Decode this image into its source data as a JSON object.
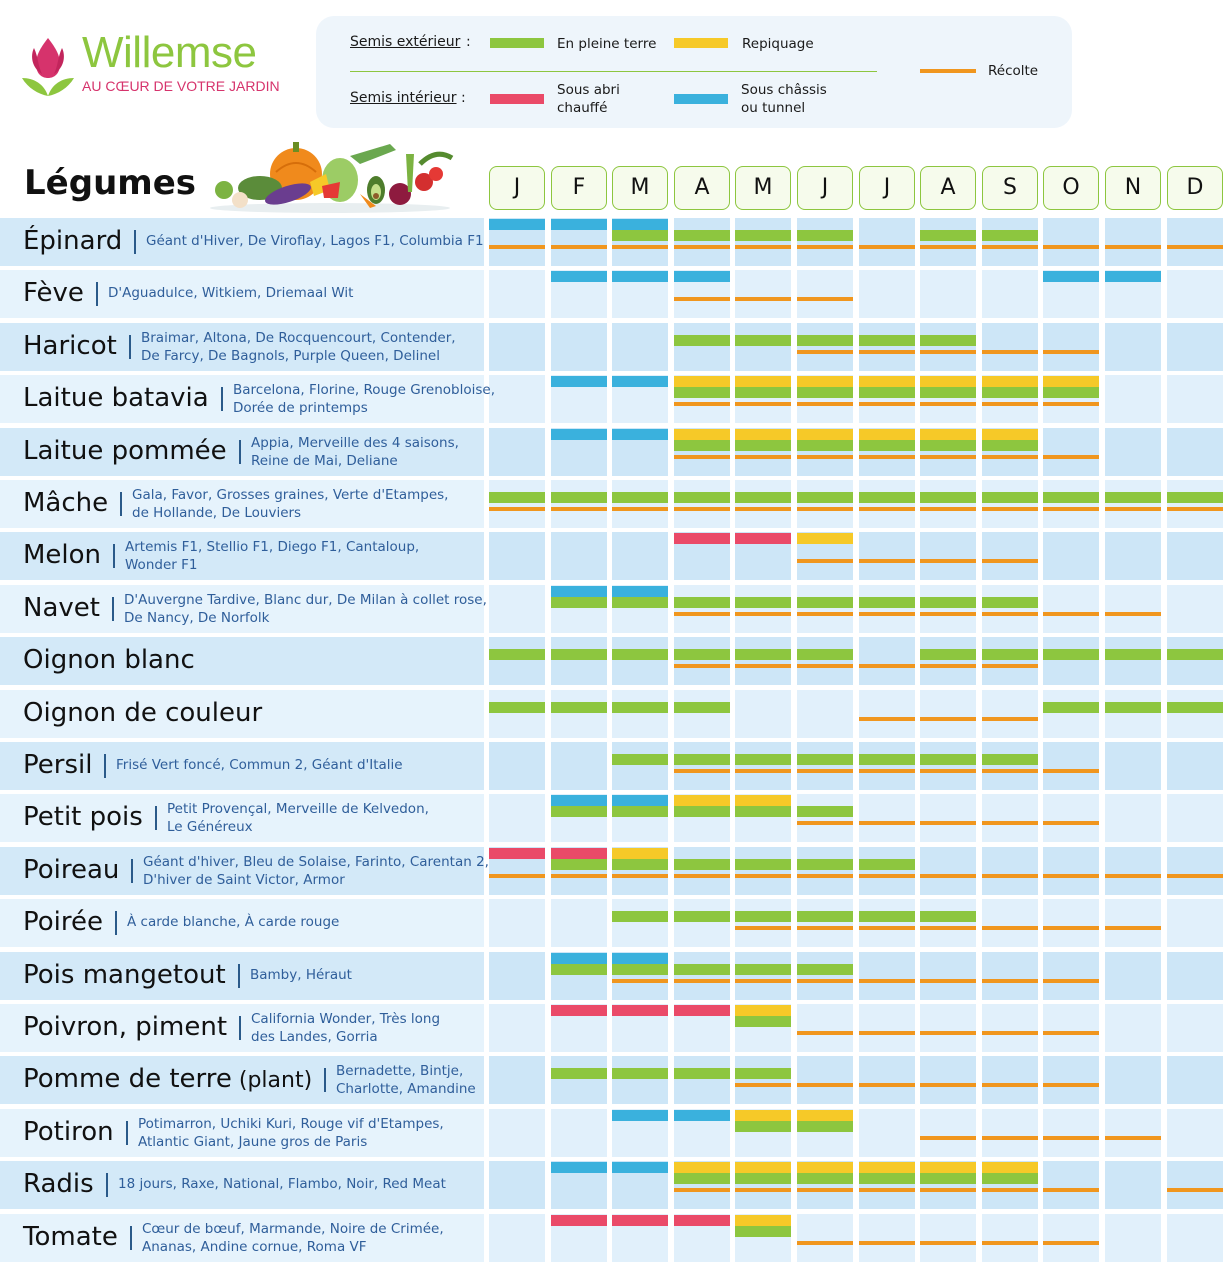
{
  "brand": {
    "name": "Willemse",
    "tagline": "AU CŒUR DE VOTRE JARDIN"
  },
  "legend": {
    "semis_exterieur": "Semis extérieur",
    "semis_interieur": "Semis intérieur",
    "colon": ":",
    "pleine_terre": "En pleine terre",
    "repiquage": "Repiquage",
    "abri_chauffe_l1": "Sous abri",
    "abri_chauffe_l2": "chauffé",
    "chassis_l1": "Sous châssis",
    "chassis_l2": "ou tunnel",
    "recolte": "Récolte"
  },
  "colors": {
    "pleine_terre": "#8dc63f",
    "repiquage": "#f6c928",
    "abri_chauffe": "#ea4a68",
    "chassis": "#3ab1dd",
    "recolte": "#f0961e"
  },
  "chart_data": {
    "type": "table",
    "title": "Légumes",
    "months": [
      "J",
      "F",
      "M",
      "A",
      "M",
      "J",
      "J",
      "A",
      "S",
      "O",
      "N",
      "D"
    ],
    "vegetables": [
      {
        "name": "Épinard",
        "suffix": "",
        "varieties": [
          "Géant d'Hiver, De Viroflay, Lagos F1, Columbia F1"
        ],
        "chassis": [
          1,
          2,
          3
        ],
        "abri": [],
        "repiquage": [],
        "pleine_terre": [
          3,
          4,
          5,
          6,
          8,
          9
        ],
        "recolte": [
          1,
          2,
          3,
          4,
          5,
          6,
          7,
          8,
          9,
          10,
          11,
          12
        ]
      },
      {
        "name": "Fève",
        "suffix": "",
        "varieties": [
          "D'Aguadulce, Witkiem, Driemaal Wit"
        ],
        "chassis": [
          2,
          3,
          4,
          10,
          11
        ],
        "abri": [],
        "repiquage": [],
        "pleine_terre": [],
        "recolte": [
          4,
          5,
          6
        ]
      },
      {
        "name": "Haricot",
        "suffix": "",
        "varieties": [
          "Braimar, Altona, De Rocquencourt, Contender,",
          "De Farcy, De Bagnols, Purple Queen, Delinel"
        ],
        "chassis": [],
        "abri": [],
        "repiquage": [],
        "pleine_terre": [
          4,
          5,
          6,
          7,
          8
        ],
        "recolte": [
          6,
          7,
          8,
          9,
          10
        ]
      },
      {
        "name": "Laitue batavia",
        "suffix": "",
        "varieties": [
          "Barcelona, Florine, Rouge Grenobloise,",
          "Dorée de printemps"
        ],
        "chassis": [
          2,
          3
        ],
        "abri": [],
        "repiquage": [
          4,
          5,
          6,
          7,
          8,
          9,
          10
        ],
        "pleine_terre": [
          4,
          5,
          6,
          7,
          8,
          9,
          10
        ],
        "recolte": [
          4,
          5,
          6,
          7,
          8,
          9,
          10
        ]
      },
      {
        "name": "Laitue pommée",
        "suffix": "",
        "varieties": [
          "Appia, Merveille des 4 saisons,",
          "Reine de Mai, Deliane"
        ],
        "chassis": [
          2,
          3
        ],
        "abri": [],
        "repiquage": [
          4,
          5,
          6,
          7,
          8,
          9
        ],
        "pleine_terre": [
          4,
          5,
          6,
          7,
          8,
          9
        ],
        "recolte": [
          4,
          5,
          6,
          7,
          8,
          9,
          10
        ]
      },
      {
        "name": "Mâche",
        "suffix": "",
        "varieties": [
          "Gala, Favor, Grosses graines, Verte d'Etampes,",
          "de Hollande, De Louviers"
        ],
        "chassis": [],
        "abri": [],
        "repiquage": [],
        "pleine_terre": [
          1,
          2,
          3,
          4,
          5,
          6,
          7,
          8,
          9,
          10,
          11,
          12
        ],
        "recolte": [
          1,
          2,
          3,
          4,
          5,
          6,
          7,
          8,
          9,
          10,
          11,
          12
        ]
      },
      {
        "name": "Melon",
        "suffix": "",
        "varieties": [
          "Artemis F1, Stellio F1, Diego F1, Cantaloup,",
          "Wonder F1"
        ],
        "chassis": [],
        "abri": [
          4,
          5
        ],
        "repiquage": [
          6
        ],
        "pleine_terre": [],
        "recolte": [
          6,
          7,
          8,
          9
        ]
      },
      {
        "name": "Navet",
        "suffix": "",
        "varieties": [
          "D'Auvergne Tardive, Blanc dur, De Milan à collet rose,",
          "De Nancy, De Norfolk"
        ],
        "chassis": [
          2,
          3
        ],
        "abri": [],
        "repiquage": [],
        "pleine_terre": [
          2,
          3,
          4,
          5,
          6,
          7,
          8,
          9
        ],
        "recolte": [
          4,
          5,
          6,
          7,
          8,
          9,
          10,
          11
        ]
      },
      {
        "name": "Oignon blanc",
        "suffix": "",
        "varieties": [],
        "chassis": [],
        "abri": [],
        "repiquage": [],
        "pleine_terre": [
          1,
          2,
          3,
          4,
          5,
          6,
          8,
          9,
          10,
          11,
          12
        ],
        "recolte": [
          4,
          5,
          6,
          7,
          8,
          9
        ]
      },
      {
        "name": "Oignon de couleur",
        "suffix": "",
        "varieties": [],
        "chassis": [],
        "abri": [],
        "repiquage": [],
        "pleine_terre": [
          1,
          2,
          3,
          4,
          10,
          11,
          12
        ],
        "recolte": [
          7,
          8,
          9
        ]
      },
      {
        "name": "Persil",
        "suffix": "",
        "varieties": [
          "Frisé Vert foncé, Commun 2, Géant d'Italie"
        ],
        "chassis": [],
        "abri": [],
        "repiquage": [],
        "pleine_terre": [
          3,
          4,
          5,
          6,
          7,
          8,
          9
        ],
        "recolte": [
          4,
          5,
          6,
          7,
          8,
          9,
          10
        ]
      },
      {
        "name": "Petit pois",
        "suffix": "",
        "varieties": [
          "Petit Provençal, Merveille de Kelvedon,",
          "Le Généreux"
        ],
        "chassis": [
          2,
          3
        ],
        "abri": [],
        "repiquage": [
          4,
          5
        ],
        "pleine_terre": [
          2,
          3,
          4,
          5,
          6
        ],
        "recolte": [
          6,
          7,
          8,
          9,
          10
        ]
      },
      {
        "name": "Poireau",
        "suffix": "",
        "varieties": [
          "Géant d'hiver, Bleu de Solaise, Farinto, Carentan 2,",
          "D'hiver de Saint Victor, Armor"
        ],
        "chassis": [],
        "abri": [
          1,
          2
        ],
        "repiquage": [
          3
        ],
        "pleine_terre": [
          2,
          3,
          4,
          5,
          6,
          7
        ],
        "recolte": [
          1,
          2,
          3,
          4,
          5,
          6,
          7,
          8,
          9,
          10,
          11,
          12
        ]
      },
      {
        "name": "Poirée",
        "suffix": "",
        "varieties": [
          "À carde blanche, À carde rouge"
        ],
        "chassis": [],
        "abri": [],
        "repiquage": [],
        "pleine_terre": [
          3,
          4,
          5,
          6,
          7,
          8
        ],
        "recolte": [
          5,
          6,
          7,
          8,
          9,
          10,
          11
        ]
      },
      {
        "name": "Pois mangetout",
        "suffix": "",
        "varieties": [
          "Bamby, Héraut"
        ],
        "chassis": [
          2,
          3
        ],
        "abri": [],
        "repiquage": [],
        "pleine_terre": [
          2,
          3,
          4,
          5,
          6
        ],
        "recolte": [
          3,
          4,
          5,
          6,
          7,
          8,
          9,
          10
        ]
      },
      {
        "name": "Poivron, piment",
        "suffix": "",
        "varieties": [
          "California Wonder, Très long",
          "des Landes, Gorria"
        ],
        "chassis": [],
        "abri": [
          2,
          3,
          4
        ],
        "repiquage": [
          5
        ],
        "pleine_terre": [
          5
        ],
        "recolte": [
          6,
          7,
          8,
          9,
          10
        ]
      },
      {
        "name": "Pomme de terre",
        "suffix": "(plant)",
        "varieties": [
          "Bernadette, Bintje,",
          "Charlotte, Amandine"
        ],
        "chassis": [],
        "abri": [],
        "repiquage": [],
        "pleine_terre": [
          2,
          3,
          4,
          5
        ],
        "recolte": [
          5,
          6,
          7,
          8,
          9,
          10
        ]
      },
      {
        "name": "Potiron",
        "suffix": "",
        "varieties": [
          "Potimarron, Uchiki Kuri, Rouge vif d'Etampes,",
          "Atlantic Giant, Jaune gros de Paris"
        ],
        "chassis": [
          3,
          4
        ],
        "abri": [],
        "repiquage": [
          5,
          6
        ],
        "pleine_terre": [
          5,
          6
        ],
        "recolte": [
          8,
          9,
          10,
          11
        ]
      },
      {
        "name": "Radis",
        "suffix": "",
        "varieties": [
          "18 jours, Raxe, National, Flambo, Noir, Red Meat"
        ],
        "chassis": [
          2,
          3
        ],
        "abri": [],
        "repiquage": [
          4,
          5,
          6,
          7,
          8,
          9
        ],
        "pleine_terre": [
          4,
          5,
          6,
          7,
          8,
          9
        ],
        "recolte": [
          4,
          5,
          6,
          7,
          8,
          9,
          10,
          12
        ]
      },
      {
        "name": "Tomate",
        "suffix": "",
        "varieties": [
          "Cœur de bœuf, Marmande, Noire de Crimée,",
          "Ananas, Andine cornue, Roma VF"
        ],
        "chassis": [],
        "abri": [
          2,
          3,
          4
        ],
        "repiquage": [
          5
        ],
        "pleine_terre": [
          5
        ],
        "recolte": [
          6,
          7,
          8,
          9,
          10
        ]
      }
    ]
  }
}
